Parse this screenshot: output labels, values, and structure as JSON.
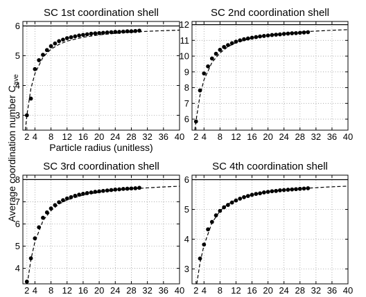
{
  "figure": {
    "ylabel_main": "Average coordination number C",
    "ylabel_sub": "ave",
    "xlabel_shared": "Particle radius (unitless)"
  },
  "chart_data": [
    {
      "type": "line",
      "title": "SC 1st coordination shell",
      "xlabel": "Particle radius (unitless)",
      "ylabel": "Average coordination number C_ave",
      "xlim": [
        1,
        40
      ],
      "ylim": [
        2.5,
        6.15
      ],
      "xticks": [
        2,
        4,
        8,
        12,
        16,
        20,
        24,
        28,
        32,
        36,
        40
      ],
      "xtick_labels": [
        "2",
        "4",
        "8",
        "12",
        "16",
        "20",
        "24",
        "28",
        "32",
        "36",
        "40"
      ],
      "yticks": [
        3,
        4,
        5,
        6
      ],
      "ytick_labels": [
        "3",
        "4",
        "5",
        "6"
      ],
      "grid": true,
      "series": [
        {
          "style": "dots",
          "x": [
            2,
            3,
            4,
            5,
            6,
            7,
            8,
            9,
            10,
            11,
            12,
            13,
            14,
            15,
            16,
            17,
            18,
            19,
            20,
            21,
            22,
            23,
            24,
            25,
            26,
            27,
            28,
            29,
            30
          ],
          "y": [
            3.0,
            3.56,
            4.55,
            4.85,
            5.03,
            5.19,
            5.32,
            5.41,
            5.49,
            5.54,
            5.59,
            5.62,
            5.65,
            5.68,
            5.7,
            5.72,
            5.74,
            5.75,
            5.76,
            5.77,
            5.78,
            5.79,
            5.8,
            5.8,
            5.81,
            5.82,
            5.82,
            5.83,
            5.84
          ]
        },
        {
          "style": "dashed",
          "x": [
            1.6,
            2,
            3,
            4,
            6,
            8,
            10,
            12,
            16,
            20,
            24,
            28,
            32,
            36,
            40
          ],
          "y": [
            2.5,
            3.0,
            3.9,
            4.4,
            4.95,
            5.22,
            5.38,
            5.49,
            5.62,
            5.7,
            5.75,
            5.79,
            5.82,
            5.84,
            5.86
          ]
        },
        {
          "style": "solid",
          "x": [
            1,
            40
          ],
          "y": [
            6,
            6
          ]
        }
      ]
    },
    {
      "type": "line",
      "title": "SC 2nd coordination shell",
      "xlabel": "",
      "ylabel": "",
      "xlim": [
        1,
        40
      ],
      "ylim": [
        5.3,
        12.2
      ],
      "xticks": [
        2,
        4,
        8,
        12,
        16,
        20,
        24,
        28,
        32,
        36,
        40
      ],
      "xtick_labels": [
        "2",
        "4",
        "8",
        "12",
        "16",
        "20",
        "24",
        "28",
        "32",
        "36",
        "40"
      ],
      "yticks": [
        6,
        7,
        8,
        9,
        10,
        11,
        12
      ],
      "ytick_labels": [
        "6",
        "7",
        "8",
        "9",
        "10",
        "11",
        "12"
      ],
      "grid": true,
      "series": [
        {
          "style": "dots",
          "x": [
            2,
            3,
            4,
            5,
            6,
            7,
            8,
            9,
            10,
            11,
            12,
            13,
            14,
            15,
            16,
            17,
            18,
            19,
            20,
            21,
            22,
            23,
            24,
            25,
            26,
            27,
            28,
            29,
            30
          ],
          "y": [
            5.85,
            7.82,
            8.9,
            9.35,
            9.85,
            10.15,
            10.4,
            10.58,
            10.7,
            10.82,
            10.92,
            11.0,
            11.07,
            11.12,
            11.17,
            11.21,
            11.25,
            11.28,
            11.31,
            11.34,
            11.36,
            11.38,
            11.41,
            11.43,
            11.45,
            11.46,
            11.48,
            11.5,
            11.52
          ]
        },
        {
          "style": "dashed",
          "x": [
            1.7,
            2,
            3,
            4,
            6,
            8,
            10,
            12,
            16,
            20,
            24,
            28,
            32,
            36,
            40
          ],
          "y": [
            5.3,
            5.9,
            7.5,
            8.5,
            9.6,
            10.2,
            10.6,
            10.85,
            11.15,
            11.33,
            11.45,
            11.53,
            11.59,
            11.64,
            11.68
          ]
        },
        {
          "style": "solid",
          "x": [
            1,
            40
          ],
          "y": [
            12,
            12
          ]
        }
      ]
    },
    {
      "type": "line",
      "title": "SC 3rd coordination shell",
      "xlabel": "",
      "ylabel": "",
      "xlim": [
        1,
        40
      ],
      "ylim": [
        3.3,
        8.2
      ],
      "xticks": [
        2,
        4,
        8,
        12,
        16,
        20,
        24,
        28,
        32,
        36,
        40
      ],
      "xtick_labels": [
        "2",
        "4",
        "8",
        "12",
        "16",
        "20",
        "24",
        "28",
        "32",
        "36",
        "40"
      ],
      "yticks": [
        4,
        5,
        6,
        7,
        8
      ],
      "ytick_labels": [
        "4",
        "5",
        "6",
        "7",
        "8"
      ],
      "grid": true,
      "series": [
        {
          "style": "dots",
          "x": [
            2,
            3,
            4,
            5,
            6,
            7,
            8,
            9,
            10,
            11,
            12,
            13,
            14,
            15,
            16,
            17,
            18,
            19,
            20,
            21,
            22,
            23,
            24,
            25,
            26,
            27,
            28,
            29,
            30
          ],
          "y": [
            3.4,
            4.45,
            5.35,
            5.85,
            6.28,
            6.52,
            6.7,
            6.85,
            6.98,
            7.07,
            7.15,
            7.21,
            7.27,
            7.32,
            7.36,
            7.39,
            7.42,
            7.45,
            7.47,
            7.49,
            7.51,
            7.53,
            7.55,
            7.56,
            7.58,
            7.59,
            7.6,
            7.61,
            7.63
          ]
        },
        {
          "style": "dashed",
          "x": [
            2.1,
            3,
            4,
            6,
            8,
            10,
            12,
            16,
            20,
            24,
            28,
            32,
            36,
            40
          ],
          "y": [
            3.3,
            4.4,
            5.2,
            6.15,
            6.6,
            6.9,
            7.08,
            7.3,
            7.43,
            7.52,
            7.58,
            7.63,
            7.67,
            7.7
          ]
        },
        {
          "style": "solid",
          "x": [
            1,
            40
          ],
          "y": [
            8,
            8
          ]
        }
      ]
    },
    {
      "type": "line",
      "title": "SC 4th coordination shell",
      "xlabel": "",
      "ylabel": "",
      "xlim": [
        1,
        40
      ],
      "ylim": [
        2.5,
        6.15
      ],
      "xticks": [
        2,
        4,
        8,
        12,
        16,
        20,
        24,
        28,
        32,
        36,
        40
      ],
      "xtick_labels": [
        "2",
        "4",
        "8",
        "12",
        "16",
        "20",
        "24",
        "28",
        "32",
        "36",
        "40"
      ],
      "yticks": [
        3,
        4,
        5,
        6
      ],
      "ytick_labels": [
        "3",
        "4",
        "5",
        "6"
      ],
      "grid": true,
      "series": [
        {
          "style": "dots",
          "x": [
            3,
            4,
            5,
            6,
            7,
            8,
            9,
            10,
            11,
            12,
            13,
            14,
            15,
            16,
            17,
            18,
            19,
            20,
            21,
            22,
            23,
            24,
            25,
            26,
            27,
            28,
            29,
            30
          ],
          "y": [
            3.35,
            3.82,
            4.33,
            4.58,
            4.8,
            4.95,
            5.07,
            5.15,
            5.23,
            5.3,
            5.36,
            5.41,
            5.45,
            5.49,
            5.52,
            5.54,
            5.57,
            5.59,
            5.61,
            5.62,
            5.64,
            5.65,
            5.66,
            5.67,
            5.68,
            5.69,
            5.7,
            5.71
          ]
        },
        {
          "style": "dashed",
          "x": [
            2.2,
            3,
            4,
            6,
            8,
            10,
            12,
            16,
            20,
            24,
            28,
            32,
            36,
            40
          ],
          "y": [
            2.5,
            3.2,
            3.8,
            4.55,
            4.95,
            5.18,
            5.32,
            5.5,
            5.6,
            5.66,
            5.7,
            5.73,
            5.76,
            5.78
          ]
        },
        {
          "style": "solid",
          "x": [
            1,
            40
          ],
          "y": [
            6,
            6
          ]
        }
      ]
    }
  ]
}
